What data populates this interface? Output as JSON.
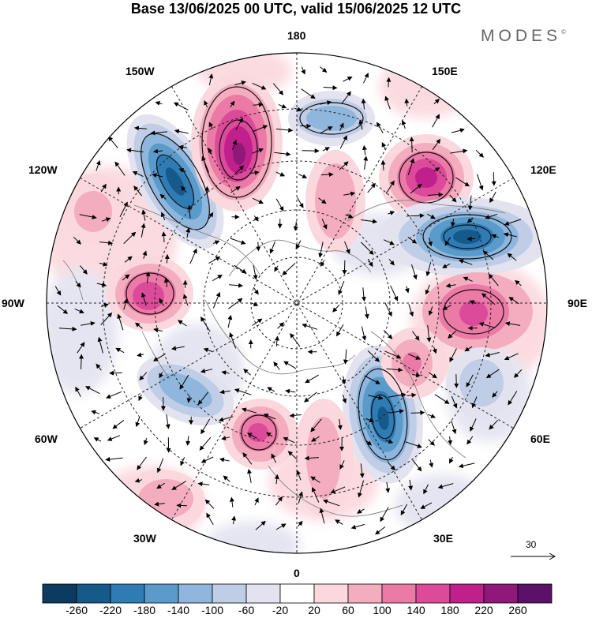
{
  "title": "Base 13/06/2025 00 UTC, valid 15/06/2025 12 UTC",
  "logo": {
    "text": "MODES",
    "mark": "©"
  },
  "longitude_labels": {
    "top": "180",
    "bottom": "0",
    "left": "90W",
    "right": "90E",
    "nw_upper": "150W",
    "nw_lower": "120W",
    "ne_upper": "150E",
    "ne_lower": "120E",
    "sw_upper": "60W",
    "sw_lower": "30W",
    "se_upper": "60E",
    "se_lower": "30E"
  },
  "vector_scale": {
    "label": "30"
  },
  "colorbar": {
    "ticks": [
      "-260",
      "-220",
      "-180",
      "-140",
      "-100",
      "-60",
      "-20",
      "20",
      "60",
      "100",
      "140",
      "180",
      "220",
      "260"
    ],
    "colors": [
      "#0b3b5e",
      "#155a8a",
      "#2f7cb5",
      "#5b9bcb",
      "#8fb6dc",
      "#c0cde6",
      "#e3e3f0",
      "#ffffff",
      "#fbd8dd",
      "#f4adbe",
      "#ec7aa6",
      "#dc4a9a",
      "#c0208c",
      "#901878",
      "#5c1168"
    ]
  },
  "anomaly_centers": [
    {
      "value": 260,
      "type": "positive"
    },
    {
      "value": -240,
      "type": "negative"
    },
    {
      "value": 220,
      "type": "positive"
    },
    {
      "value": -220,
      "type": "negative"
    },
    {
      "value": 180,
      "type": "positive"
    },
    {
      "value": -200,
      "type": "negative"
    },
    {
      "value": 160,
      "type": "positive"
    },
    {
      "value": -140,
      "type": "negative"
    },
    {
      "value": 140,
      "type": "positive"
    },
    {
      "value": 100,
      "type": "positive"
    },
    {
      "value": -100,
      "type": "negative"
    }
  ]
}
